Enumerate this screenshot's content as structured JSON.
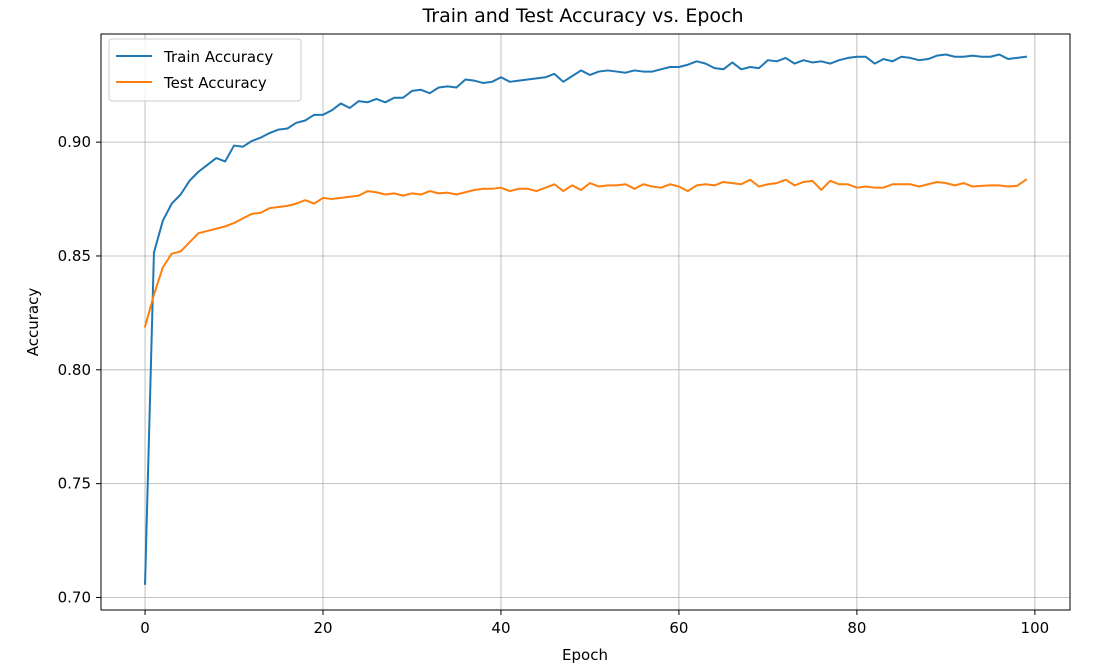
{
  "chart_data": {
    "type": "line",
    "title": "Train and Test Accuracy vs. Epoch",
    "xlabel": "Epoch",
    "ylabel": "Accuracy",
    "xlim": [
      -4.95,
      103.95
    ],
    "ylim": [
      0.6945,
      0.9475
    ],
    "xticks": [
      0,
      20,
      40,
      60,
      80,
      100
    ],
    "yticks": [
      0.7,
      0.75,
      0.8,
      0.85,
      0.9
    ],
    "grid": true,
    "legend_position": "top-left",
    "series": [
      {
        "name": "Train Accuracy",
        "color": "#1f77b4",
        "x_start": 0,
        "values": [
          0.706,
          0.8515,
          0.8655,
          0.873,
          0.877,
          0.883,
          0.887,
          0.89,
          0.893,
          0.8915,
          0.8985,
          0.898,
          0.9005,
          0.902,
          0.904,
          0.9055,
          0.906,
          0.9085,
          0.9095,
          0.912,
          0.912,
          0.914,
          0.917,
          0.915,
          0.918,
          0.9175,
          0.919,
          0.9175,
          0.9195,
          0.9195,
          0.9225,
          0.923,
          0.9215,
          0.924,
          0.9245,
          0.924,
          0.9275,
          0.927,
          0.926,
          0.9265,
          0.9285,
          0.9265,
          0.927,
          0.9275,
          0.928,
          0.9285,
          0.93,
          0.9265,
          0.929,
          0.9315,
          0.9295,
          0.931,
          0.9315,
          0.931,
          0.9305,
          0.9315,
          0.931,
          0.931,
          0.932,
          0.933,
          0.933,
          0.934,
          0.9355,
          0.9345,
          0.9325,
          0.932,
          0.935,
          0.932,
          0.933,
          0.9325,
          0.936,
          0.9355,
          0.937,
          0.9345,
          0.936,
          0.935,
          0.9355,
          0.9345,
          0.936,
          0.937,
          0.9375,
          0.9375,
          0.9345,
          0.9365,
          0.9355,
          0.9375,
          0.937,
          0.936,
          0.9365,
          0.938,
          0.9385,
          0.9375,
          0.9375,
          0.938,
          0.9375,
          0.9375,
          0.9385,
          0.9365,
          0.937,
          0.9375
        ]
      },
      {
        "name": "Test Accuracy",
        "color": "#ff7f0e",
        "x_start": 0,
        "values": [
          0.819,
          0.833,
          0.845,
          0.851,
          0.852,
          0.856,
          0.86,
          0.861,
          0.862,
          0.863,
          0.8645,
          0.8665,
          0.8685,
          0.869,
          0.871,
          0.8715,
          0.872,
          0.873,
          0.8745,
          0.873,
          0.8755,
          0.875,
          0.8755,
          0.876,
          0.8765,
          0.8785,
          0.878,
          0.877,
          0.8775,
          0.8765,
          0.8775,
          0.877,
          0.8785,
          0.8775,
          0.8778,
          0.877,
          0.878,
          0.879,
          0.8795,
          0.8795,
          0.88,
          0.8785,
          0.8795,
          0.8795,
          0.8785,
          0.88,
          0.8815,
          0.8785,
          0.881,
          0.879,
          0.882,
          0.8805,
          0.881,
          0.881,
          0.8815,
          0.8795,
          0.8815,
          0.8805,
          0.88,
          0.8815,
          0.8805,
          0.8785,
          0.881,
          0.8815,
          0.881,
          0.8825,
          0.882,
          0.8815,
          0.8835,
          0.8805,
          0.8815,
          0.882,
          0.8835,
          0.881,
          0.8825,
          0.883,
          0.879,
          0.883,
          0.8815,
          0.8815,
          0.88,
          0.8805,
          0.88,
          0.88,
          0.8815,
          0.8815,
          0.8815,
          0.8805,
          0.8815,
          0.8825,
          0.882,
          0.881,
          0.882,
          0.8805,
          0.8808,
          0.881,
          0.881,
          0.8805,
          0.8808,
          0.8835
        ]
      }
    ]
  }
}
